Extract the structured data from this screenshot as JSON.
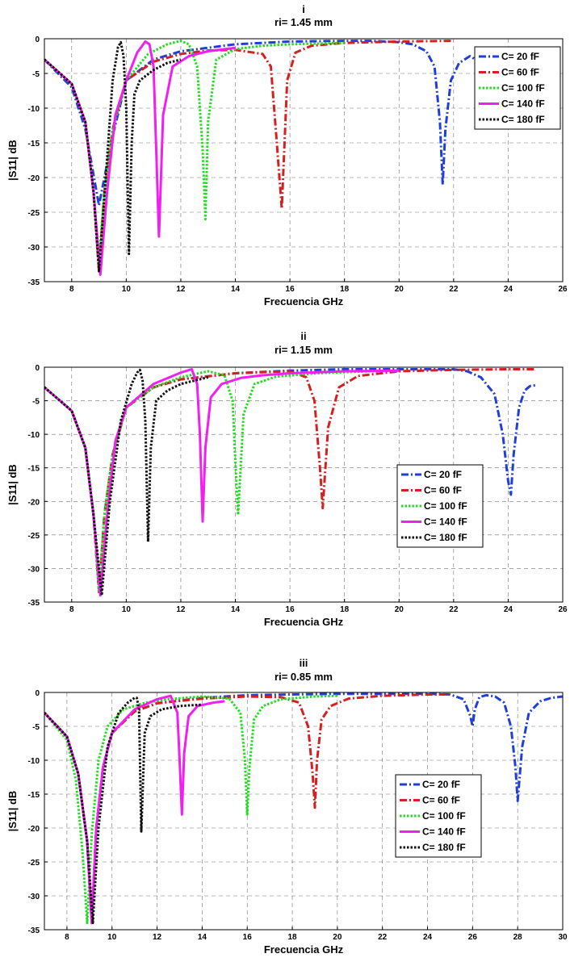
{
  "chart_data": [
    {
      "type": "line",
      "title": "i",
      "subtitle": "ri= 1.45 mm",
      "xlabel": "Frecuencia GHz",
      "ylabel": "|S11| dB",
      "xlim": [
        7,
        26
      ],
      "ylim": [
        -35,
        0
      ],
      "xticks": [
        8,
        10,
        12,
        14,
        16,
        18,
        20,
        22,
        24,
        26
      ],
      "yticks": [
        0,
        -5,
        -10,
        -15,
        -20,
        -25,
        -30,
        -35
      ],
      "grid": true,
      "legend_position": "top-right",
      "series": [
        {
          "name": "C= 20 fF",
          "color": "#1f3fd6",
          "dash": "dashdot",
          "x": [
            7,
            8,
            8.5,
            9,
            9.5,
            10,
            11,
            12,
            14,
            16,
            18,
            19,
            20,
            20.5,
            21,
            21.3,
            21.5,
            21.6,
            21.7,
            21.9,
            22.2,
            22.6,
            23,
            23.5,
            24,
            24.5,
            25
          ],
          "y": [
            -3,
            -7,
            -13,
            -24,
            -14,
            -6,
            -3,
            -1.8,
            -0.8,
            -0.4,
            -0.3,
            -0.3,
            -0.5,
            -0.8,
            -1.8,
            -4,
            -12,
            -21,
            -13,
            -6,
            -3.5,
            -2.5,
            -3.5,
            -7,
            -6,
            -4,
            -3
          ]
        },
        {
          "name": "C= 60 fF",
          "color": "#d42020",
          "dash": "dashdot",
          "x": [
            7,
            8,
            8.5,
            8.8,
            9,
            9.2,
            9.5,
            10,
            11,
            12,
            13,
            14,
            15,
            15.3,
            15.5,
            15.7,
            15.9,
            16.2,
            16.8,
            18,
            20,
            22
          ],
          "y": [
            -3,
            -6.5,
            -12,
            -22,
            -33.5,
            -22,
            -13,
            -6,
            -3.3,
            -2.2,
            -1.7,
            -1.6,
            -2.2,
            -4,
            -14,
            -24.5,
            -6,
            -2,
            -1,
            -0.6,
            -0.4,
            -0.3
          ]
        },
        {
          "name": "C= 100 fF",
          "color": "#22dd22",
          "dash": "dot",
          "x": [
            7,
            8,
            8.5,
            8.8,
            9,
            9.2,
            9.5,
            10,
            10.8,
            11.5,
            12,
            12.3,
            12.6,
            12.8,
            12.9,
            13,
            13.3,
            14,
            15,
            16,
            17,
            18
          ],
          "y": [
            -3,
            -6.5,
            -12,
            -22,
            -32,
            -22,
            -13,
            -6,
            -2.2,
            -0.8,
            -0.3,
            -0.8,
            -4,
            -16,
            -26,
            -12,
            -3,
            -1.5,
            -1,
            -0.8,
            -0.7,
            -0.6
          ]
        },
        {
          "name": "C= 140 fF",
          "color": "#f020f0",
          "dash": "solid",
          "x": [
            7,
            8,
            8.5,
            8.8,
            9.05,
            9.3,
            9.6,
            10,
            10.4,
            10.7,
            10.85,
            11,
            11.1,
            11.2,
            11.35,
            11.7,
            12.3,
            13,
            14
          ],
          "y": [
            -3,
            -6.5,
            -12,
            -22,
            -34,
            -22,
            -11,
            -6,
            -2,
            -0.4,
            -0.8,
            -4,
            -16,
            -28.5,
            -11,
            -4,
            -2.5,
            -1.8,
            -1.3
          ]
        },
        {
          "name": "C= 180 fF",
          "color": "#111111",
          "dash": "dot",
          "x": [
            7,
            8,
            8.5,
            8.8,
            9,
            9.25,
            9.5,
            9.7,
            9.8,
            9.9,
            10,
            10.1,
            10.2,
            10.3,
            10.5,
            11,
            11.5,
            12
          ],
          "y": [
            -3,
            -6.5,
            -12,
            -22,
            -33.5,
            -20,
            -6,
            -1.2,
            -0.5,
            -2.5,
            -10,
            -31,
            -15,
            -8,
            -6,
            -4.5,
            -3.5,
            -3
          ]
        }
      ]
    },
    {
      "type": "line",
      "title": "ii",
      "subtitle": "ri= 1.15 mm",
      "xlabel": "Frecuencia GHz",
      "ylabel": "|S11| dB",
      "xlim": [
        7,
        26
      ],
      "ylim": [
        -35,
        0
      ],
      "xticks": [
        8,
        10,
        12,
        14,
        16,
        18,
        20,
        22,
        24,
        26
      ],
      "yticks": [
        0,
        -5,
        -10,
        -15,
        -20,
        -25,
        -30,
        -35
      ],
      "grid": true,
      "legend_position": "center-right",
      "series": [
        {
          "name": "C= 20 fF",
          "color": "#1f3fd6",
          "dash": "dashdot",
          "x": [
            7,
            8,
            8.5,
            8.8,
            9,
            9.2,
            9.5,
            10,
            11,
            12,
            14,
            16,
            18,
            20,
            22,
            22.5,
            23,
            23.5,
            23.8,
            24,
            24.1,
            24.2,
            24.4,
            24.6,
            24.8,
            25
          ],
          "y": [
            -3,
            -6.5,
            -12,
            -22,
            -33.5,
            -22,
            -13,
            -6,
            -3,
            -1.8,
            -0.9,
            -0.5,
            -0.3,
            -0.3,
            -0.3,
            -0.6,
            -1.5,
            -4,
            -10,
            -17,
            -19,
            -13,
            -6,
            -3.5,
            -2.8,
            -2.7
          ]
        },
        {
          "name": "C= 60 fF",
          "color": "#d42020",
          "dash": "dashdot",
          "x": [
            7,
            8,
            8.5,
            8.8,
            9,
            9.2,
            9.5,
            10,
            11,
            12,
            14,
            16,
            16.6,
            16.9,
            17.1,
            17.2,
            17.4,
            17.8,
            18.5,
            20,
            22,
            24,
            25
          ],
          "y": [
            -3,
            -6.5,
            -12,
            -22,
            -33.5,
            -22,
            -13,
            -6,
            -3,
            -1.8,
            -0.9,
            -0.6,
            -1.5,
            -5,
            -15,
            -21,
            -9,
            -3,
            -1.3,
            -0.6,
            -0.4,
            -0.3,
            -0.3
          ]
        },
        {
          "name": "C= 100 fF",
          "color": "#22dd22",
          "dash": "dot",
          "x": [
            7,
            8,
            8.5,
            8.8,
            9,
            9.2,
            9.5,
            10,
            11,
            12,
            13,
            13.6,
            13.9,
            14,
            14.1,
            14.3,
            14.7,
            15.5,
            17,
            19,
            20
          ],
          "y": [
            -3,
            -6.5,
            -12,
            -22,
            -33.5,
            -22,
            -13,
            -6,
            -3,
            -1.5,
            -0.6,
            -1.2,
            -5,
            -14,
            -22,
            -7,
            -2.5,
            -1.4,
            -0.9,
            -0.6,
            -0.5
          ]
        },
        {
          "name": "C= 140 fF",
          "color": "#f020f0",
          "dash": "solid",
          "x": [
            7,
            8,
            8.5,
            8.8,
            9.05,
            9.3,
            9.6,
            10,
            11,
            12,
            12.4,
            12.6,
            12.7,
            12.8,
            12.9,
            13.1,
            13.5,
            14.2,
            15,
            16,
            18,
            20
          ],
          "y": [
            -3,
            -6.5,
            -12,
            -22,
            -34,
            -22,
            -11,
            -6,
            -2.5,
            -0.8,
            -0.3,
            -2.5,
            -10,
            -23,
            -12,
            -4.5,
            -2.5,
            -1.6,
            -1.2,
            -0.9,
            -0.6,
            -0.5
          ]
        },
        {
          "name": "C= 180 fF",
          "color": "#111111",
          "dash": "dot",
          "x": [
            7,
            8,
            8.5,
            8.8,
            9.1,
            9.4,
            9.8,
            10.2,
            10.4,
            10.5,
            10.6,
            10.7,
            10.8,
            10.9,
            11.1,
            11.5,
            12,
            12.5,
            13
          ],
          "y": [
            -3,
            -6.5,
            -12,
            -22,
            -34,
            -20,
            -8,
            -2.5,
            -0.8,
            -0.4,
            -2,
            -8,
            -26,
            -12,
            -5,
            -3.5,
            -2.5,
            -2,
            -1.5
          ]
        }
      ]
    },
    {
      "type": "line",
      "title": "iii",
      "subtitle": "ri= 0.85 mm",
      "xlabel": "Frecuencia GHz",
      "ylabel": "|S11| dB",
      "xlim": [
        7,
        30
      ],
      "ylim": [
        -35,
        0
      ],
      "xticks": [
        8,
        10,
        12,
        14,
        16,
        18,
        20,
        22,
        24,
        26,
        28,
        30
      ],
      "yticks": [
        0,
        -5,
        -10,
        -15,
        -20,
        -25,
        -30,
        -35
      ],
      "grid": true,
      "legend_position": "center-right",
      "series": [
        {
          "name": "C= 20 fF",
          "color": "#1f3fd6",
          "dash": "dashdot",
          "x": [
            7,
            8,
            8.5,
            8.9,
            9.1,
            9.3,
            9.6,
            10,
            11,
            12,
            14,
            16,
            18,
            20,
            22,
            24,
            25,
            25.6,
            25.9,
            26,
            26.1,
            26.3,
            26.6,
            27,
            27.4,
            27.7,
            27.9,
            28,
            28.2,
            28.5,
            29,
            29.5,
            30
          ],
          "y": [
            -3,
            -6.5,
            -12,
            -22,
            -34,
            -20,
            -11,
            -6,
            -2.8,
            -1.6,
            -0.8,
            -0.4,
            -0.3,
            -0.2,
            -0.2,
            -0.2,
            -0.3,
            -1,
            -3.5,
            -5,
            -2.5,
            -0.7,
            -0.4,
            -0.6,
            -1.5,
            -5,
            -11,
            -16,
            -8,
            -3,
            -1.3,
            -0.8,
            -0.6
          ]
        },
        {
          "name": "C= 60 fF",
          "color": "#d42020",
          "dash": "dashdot",
          "x": [
            7,
            8,
            8.5,
            8.9,
            9.1,
            9.3,
            9.6,
            10,
            11,
            12,
            14,
            16,
            17.5,
            18.3,
            18.7,
            18.9,
            19,
            19.1,
            19.3,
            19.7,
            20.5,
            22,
            24,
            25
          ],
          "y": [
            -3,
            -6.5,
            -12,
            -22,
            -34,
            -20,
            -11,
            -6,
            -2.8,
            -1.6,
            -0.9,
            -0.6,
            -0.7,
            -1.5,
            -5,
            -12,
            -17,
            -10,
            -4,
            -2,
            -0.9,
            -0.5,
            -0.3,
            -0.3
          ]
        },
        {
          "name": "C= 100 fF",
          "color": "#22dd22",
          "dash": "dot",
          "x": [
            7,
            8,
            8.4,
            8.7,
            8.9,
            9.1,
            9.4,
            9.8,
            10.5,
            11.5,
            12.5,
            14,
            15.2,
            15.7,
            15.9,
            16,
            16.1,
            16.3,
            16.7,
            17.5,
            19,
            20
          ],
          "y": [
            -3,
            -7,
            -13,
            -24,
            -34,
            -21,
            -10,
            -5,
            -2.5,
            -1.5,
            -1,
            -0.6,
            -0.9,
            -3,
            -10,
            -18,
            -11,
            -4,
            -2,
            -1,
            -0.6,
            -0.5
          ]
        },
        {
          "name": "C= 140 fF",
          "color": "#f020f0",
          "dash": "solid",
          "x": [
            7,
            8,
            8.5,
            8.9,
            9.1,
            9.3,
            9.6,
            10,
            11,
            12,
            12.6,
            12.9,
            13,
            13.1,
            13.2,
            13.4,
            13.8,
            14.5,
            15
          ],
          "y": [
            -3,
            -6.5,
            -12,
            -22,
            -34,
            -20,
            -11,
            -6,
            -2.5,
            -1,
            -0.5,
            -3,
            -10,
            -18,
            -9,
            -3.5,
            -2,
            -1.5,
            -1.3
          ]
        },
        {
          "name": "C= 180 fF",
          "color": "#111111",
          "dash": "dot",
          "x": [
            7,
            8,
            8.5,
            8.9,
            9.15,
            9.4,
            9.8,
            10.3,
            10.7,
            11,
            11.1,
            11.2,
            11.3,
            11.45,
            11.7,
            12.2,
            13,
            14
          ],
          "y": [
            -3,
            -6.5,
            -12,
            -22,
            -34,
            -20,
            -8,
            -3,
            -1.5,
            -0.8,
            -0.8,
            -2.5,
            -20.5,
            -6,
            -3.5,
            -2.5,
            -2,
            -1.8
          ]
        }
      ]
    }
  ]
}
